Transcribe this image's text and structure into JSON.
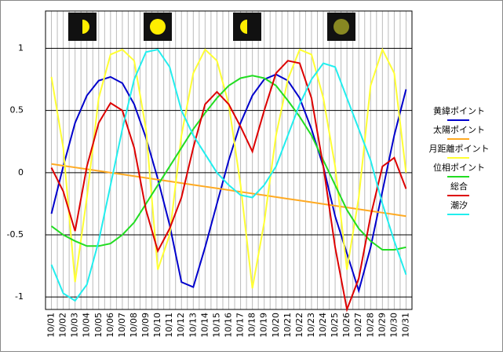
{
  "chart_data": {
    "type": "line",
    "categories": [
      "10/01",
      "10/02",
      "10/03",
      "10/04",
      "10/05",
      "10/06",
      "10/07",
      "10/08",
      "10/09",
      "10/10",
      "10/11",
      "10/12",
      "10/13",
      "10/14",
      "10/15",
      "10/16",
      "10/17",
      "10/18",
      "10/19",
      "10/20",
      "10/21",
      "10/22",
      "10/23",
      "10/24",
      "10/25",
      "10/26",
      "10/27",
      "10/28",
      "10/29",
      "10/30",
      "10/31"
    ],
    "series": [
      {
        "name": "黄緯ポイント",
        "color": "#0000cc",
        "values": [
          -0.33,
          0.05,
          0.4,
          0.62,
          0.74,
          0.77,
          0.72,
          0.55,
          0.28,
          -0.05,
          -0.42,
          -0.88,
          -0.92,
          -0.6,
          -0.25,
          0.1,
          0.4,
          0.62,
          0.75,
          0.79,
          0.74,
          0.6,
          0.35,
          0.05,
          -0.35,
          -0.65,
          -0.95,
          -0.6,
          -0.15,
          0.3,
          0.67
        ]
      },
      {
        "name": "太陽ポイント",
        "color": "#ffaa22",
        "values": [
          0.07,
          0.056,
          0.042,
          0.028,
          0.014,
          0.0,
          -0.014,
          -0.028,
          -0.042,
          -0.056,
          -0.07,
          -0.084,
          -0.098,
          -0.112,
          -0.126,
          -0.14,
          -0.154,
          -0.168,
          -0.182,
          -0.196,
          -0.21,
          -0.224,
          -0.238,
          -0.252,
          -0.266,
          -0.28,
          -0.294,
          -0.308,
          -0.322,
          -0.336,
          -0.35
        ]
      },
      {
        "name": "月距離ポイント",
        "color": "#ffff33",
        "values": [
          0.77,
          0.2,
          -0.88,
          -0.2,
          0.6,
          0.95,
          0.99,
          0.9,
          0.35,
          -0.78,
          -0.5,
          0.3,
          0.8,
          0.99,
          0.9,
          0.55,
          -0.1,
          -0.93,
          -0.4,
          0.3,
          0.75,
          0.99,
          0.95,
          0.6,
          0.05,
          -0.78,
          -0.2,
          0.7,
          0.99,
          0.8,
          0.0
        ]
      },
      {
        "name": "位相ポイント",
        "color": "#22dd22",
        "values": [
          -0.43,
          -0.5,
          -0.55,
          -0.59,
          -0.59,
          -0.57,
          -0.5,
          -0.4,
          -0.25,
          -0.1,
          0.05,
          0.2,
          0.35,
          0.48,
          0.6,
          0.7,
          0.76,
          0.78,
          0.76,
          0.7,
          0.58,
          0.45,
          0.3,
          0.1,
          -0.1,
          -0.3,
          -0.45,
          -0.55,
          -0.62,
          -0.62,
          -0.6
        ]
      },
      {
        "name": "総合",
        "color": "#dd0000",
        "values": [
          0.04,
          -0.15,
          -0.47,
          0.05,
          0.4,
          0.56,
          0.5,
          0.2,
          -0.3,
          -0.63,
          -0.45,
          -0.2,
          0.2,
          0.55,
          0.65,
          0.55,
          0.37,
          0.17,
          0.5,
          0.8,
          0.9,
          0.88,
          0.6,
          0.05,
          -0.6,
          -1.1,
          -0.85,
          -0.35,
          0.05,
          0.12,
          -0.13
        ]
      },
      {
        "name": "潮汐",
        "color": "#22eeee",
        "values": [
          -0.74,
          -0.97,
          -1.03,
          -0.9,
          -0.55,
          -0.1,
          0.35,
          0.75,
          0.97,
          0.99,
          0.85,
          0.5,
          0.3,
          0.15,
          0.0,
          -0.1,
          -0.18,
          -0.2,
          -0.1,
          0.05,
          0.3,
          0.55,
          0.75,
          0.88,
          0.85,
          0.6,
          0.35,
          0.1,
          -0.25,
          -0.55,
          -0.82
        ]
      }
    ],
    "ylim": [
      -1.1,
      1.3
    ],
    "yticks": [
      1,
      0.5,
      0,
      -0.5,
      -1
    ],
    "grid": true
  }
}
